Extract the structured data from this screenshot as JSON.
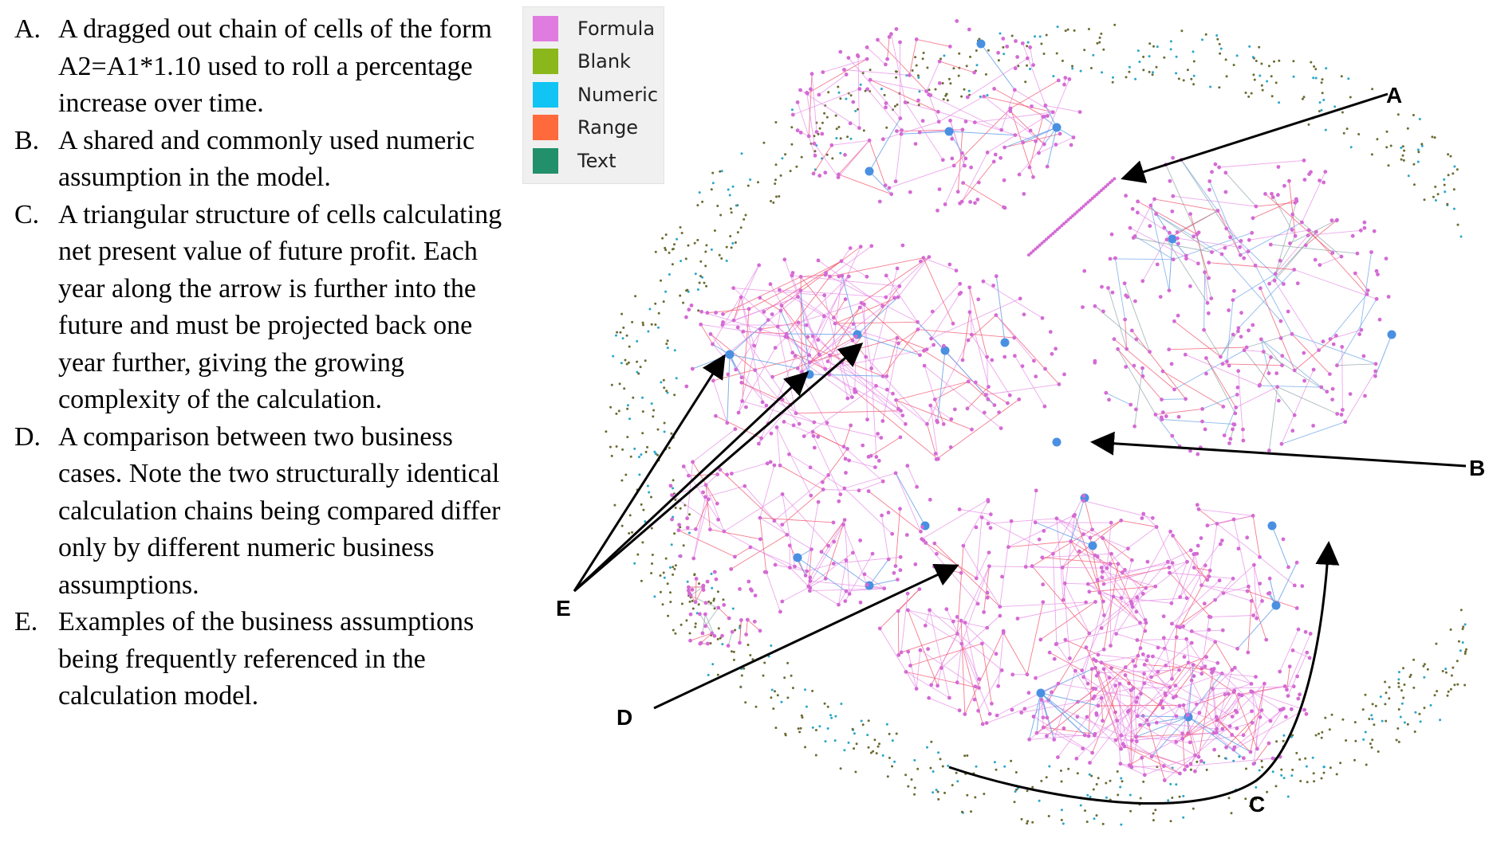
{
  "annotations": [
    {
      "letter": "A.",
      "text": "A dragged out chain of cells of the form A2=A1*1.10 used to roll a percentage increase over time."
    },
    {
      "letter": "B.",
      "text": "A shared and commonly used numeric assumption in the model."
    },
    {
      "letter": "C.",
      "text": "A triangular structure of cells calculating net present value of future profit. Each year along the arrow is further into the future and must be projected back one year further, giving the growing complexity of the calculation."
    },
    {
      "letter": "D.",
      "text": "A comparison between two business cases. Note the two structurally identical calculation chains being compared differ only by different numeric business assumptions."
    },
    {
      "letter": "E.",
      "text": "Examples of the business assumptions being frequently referenced in the calculation model."
    }
  ],
  "legend": [
    {
      "label": "Formula",
      "color": "#e07be0"
    },
    {
      "label": "Blank",
      "color": "#8ab81a"
    },
    {
      "label": "Numeric",
      "color": "#12c4f4"
    },
    {
      "label": "Range",
      "color": "#ff6a3d"
    },
    {
      "label": "Text",
      "color": "#22906a"
    }
  ],
  "callouts": {
    "a": "A",
    "b": "B",
    "c": "C",
    "d": "D",
    "e": "E"
  },
  "colors": {
    "formula_node": "#d46bd4",
    "edge_pink": "#e58be5",
    "edge_red": "#f0506a",
    "edge_blue": "#6aa3e6",
    "edge_gray": "#8fa3a8",
    "numeric_node": "#4a90e2",
    "blank_dot": "#6b6b33",
    "numeric_dot": "#2aa6c8"
  }
}
